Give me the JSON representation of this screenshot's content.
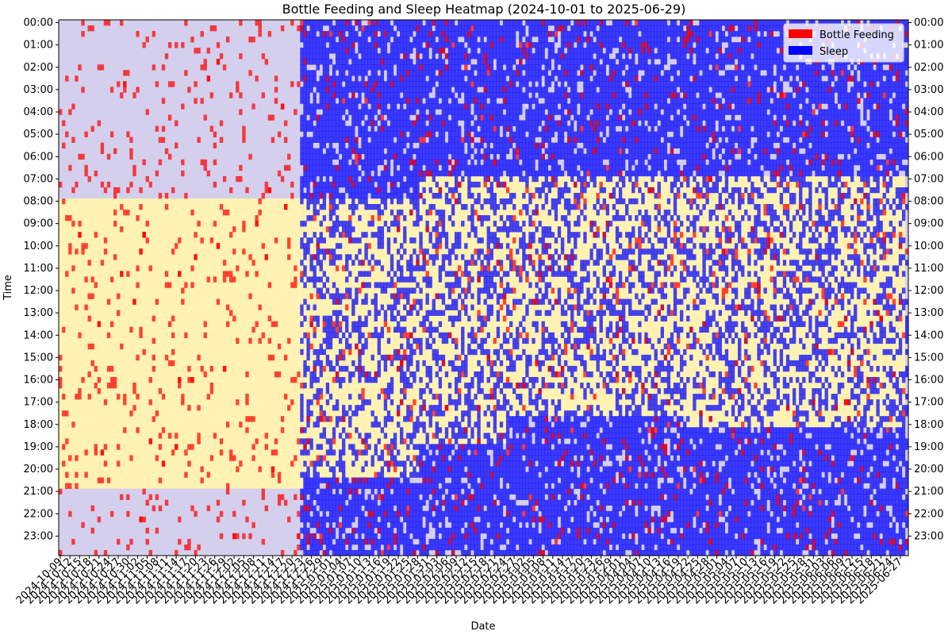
{
  "chart_data": {
    "type": "heatmap",
    "title": "Bottle Feeding and Sleep Heatmap (2024-10-01 to 2025-06-29)",
    "xlabel": "Date",
    "ylabel": "Time",
    "date_range": [
      "2024-10-01",
      "2025-06-29"
    ],
    "x_ticks": [
      "2024-10-09",
      "2024-10-12",
      "2024-10-15",
      "2024-10-18",
      "2024-10-21",
      "2024-10-24",
      "2024-10-27",
      "2024-10-30",
      "2024-11-02",
      "2024-11-05",
      "2024-11-08",
      "2024-11-11",
      "2024-11-14",
      "2024-11-17",
      "2024-11-20",
      "2024-11-23",
      "2024-11-26",
      "2024-11-29",
      "2024-12-02",
      "2024-12-05",
      "2024-12-08",
      "2024-12-11",
      "2024-12-14",
      "2024-12-17",
      "2024-12-20",
      "2024-12-23",
      "2024-12-26",
      "2024-12-29",
      "2025-01-01",
      "2025-01-04",
      "2025-01-07",
      "2025-01-10",
      "2025-01-13",
      "2025-01-16",
      "2025-01-19",
      "2025-01-22",
      "2025-01-25",
      "2025-01-28",
      "2025-01-31",
      "2025-02-03",
      "2025-02-06",
      "2025-02-09",
      "2025-02-12",
      "2025-02-15",
      "2025-02-18",
      "2025-02-21",
      "2025-02-24",
      "2025-02-27",
      "2025-03-02",
      "2025-03-05",
      "2025-03-08",
      "2025-03-11",
      "2025-03-14",
      "2025-03-17",
      "2025-03-20",
      "2025-03-23",
      "2025-03-26",
      "2025-03-29",
      "2025-04-01",
      "2025-04-04",
      "2025-04-07",
      "2025-04-10",
      "2025-04-13",
      "2025-04-16",
      "2025-04-19",
      "2025-04-22",
      "2025-04-25",
      "2025-04-28",
      "2025-05-01",
      "2025-05-04",
      "2025-05-07",
      "2025-05-10",
      "2025-05-13",
      "2025-05-16",
      "2025-05-19",
      "2025-05-22",
      "2025-05-25",
      "2025-05-28",
      "2025-05-31",
      "2025-06-03",
      "2025-06-06",
      "2025-06-09",
      "2025-06-12",
      "2025-06-15",
      "2025-06-18",
      "2025-06-21",
      "2025-06-24",
      "2025-06-27"
    ],
    "y_ticks": [
      "00:00",
      "01:00",
      "02:00",
      "03:00",
      "04:00",
      "05:00",
      "06:00",
      "07:00",
      "08:00",
      "09:00",
      "10:00",
      "11:00",
      "12:00",
      "13:00",
      "14:00",
      "15:00",
      "16:00",
      "17:00",
      "18:00",
      "19:00",
      "20:00",
      "21:00",
      "22:00",
      "23:00"
    ],
    "series": [
      {
        "name": "Bottle Feeding",
        "color": "#ff0000"
      },
      {
        "name": "Sleep",
        "color": "#0000ff"
      }
    ],
    "background_periods": [
      {
        "from_date": "2024-10-09",
        "to_date": "2024-12-24",
        "day_start": "08:00",
        "day_end": "21:00"
      },
      {
        "from_date": "2024-12-24",
        "to_date": "2025-01-29",
        "day_start": "08:00",
        "day_end": "20:30"
      },
      {
        "from_date": "2025-01-29",
        "to_date": "2025-02-26",
        "day_start": "07:00",
        "day_end": "19:00"
      },
      {
        "from_date": "2025-02-26",
        "to_date": "2025-04-22",
        "day_start": "07:00",
        "day_end": "17:45"
      },
      {
        "from_date": "2025-04-22",
        "to_date": "2025-06-29",
        "day_start": "07:00",
        "day_end": "18:15"
      }
    ],
    "legend_position": "top-right",
    "day_color": "#fff2b3",
    "night_color": "#d4cfec"
  }
}
